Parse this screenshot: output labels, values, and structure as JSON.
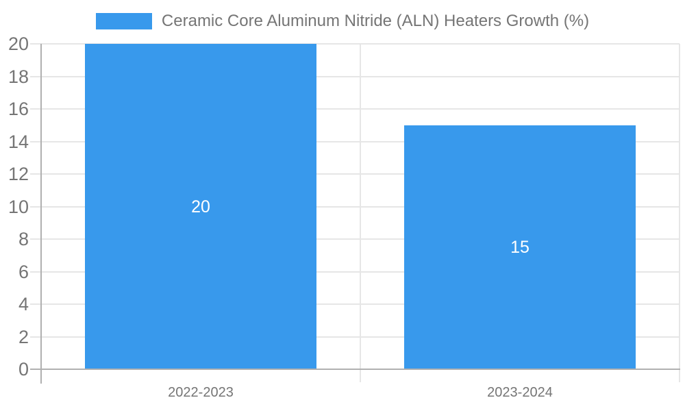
{
  "chart_data": {
    "type": "bar",
    "title": "",
    "legend_label": "Ceramic Core Aluminum Nitride (ALN) Heaters Growth (%)",
    "legend_position": "top-center",
    "categories": [
      "2022-2023",
      "2023-2024"
    ],
    "values": [
      20,
      15
    ],
    "bar_labels": [
      "20",
      "15"
    ],
    "xlabel": "",
    "ylabel": "",
    "ylim": [
      0,
      20
    ],
    "ytick_step": 2,
    "ytick_labels": [
      "0",
      "2",
      "4",
      "6",
      "8",
      "10",
      "12",
      "14",
      "16",
      "18",
      "20"
    ],
    "grid": true
  },
  "colors": {
    "bar": "#3899ec",
    "grid": "#e6e6e6",
    "axis": "#b0b0b0",
    "tick_text": "#757575",
    "bar_label_text": "#ffffff",
    "background": "#ffffff"
  }
}
